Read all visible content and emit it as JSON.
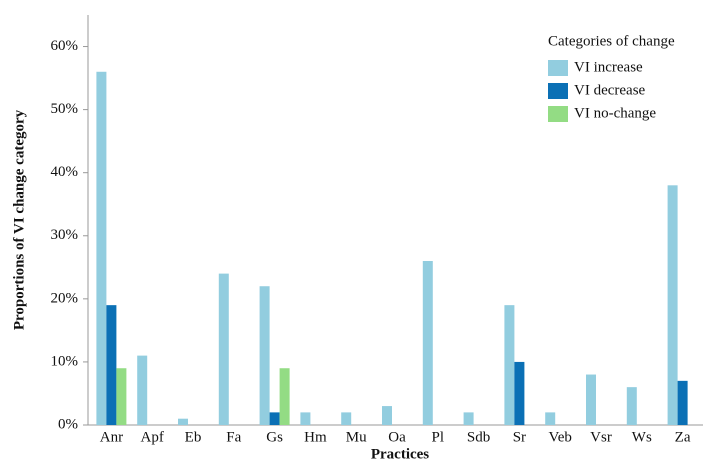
{
  "chart_data": {
    "type": "bar",
    "x_label": "Practices",
    "y_label": "Proportions of VI change category",
    "legend_title": "Categories of change",
    "legend": "top-right",
    "categories": [
      "Anr",
      "Apf",
      "Eb",
      "Fa",
      "Gs",
      "Hm",
      "Mu",
      "Oa",
      "Pl",
      "Sdb",
      "Sr",
      "Veb",
      "Vsr",
      "Ws",
      "Za"
    ],
    "series": [
      {
        "name": "VI increase",
        "color": "#92cddf",
        "values": [
          56,
          11,
          1,
          24,
          22,
          2,
          2,
          3,
          26,
          2,
          19,
          2,
          8,
          6,
          38
        ]
      },
      {
        "name": "VI decrease",
        "color": "#0b70b5",
        "values": [
          19,
          0,
          0,
          0,
          2,
          0,
          0,
          0,
          0,
          0,
          10,
          0,
          0,
          0,
          7
        ]
      },
      {
        "name": "VI no-change",
        "color": "#93dc84",
        "values": [
          9,
          0,
          0,
          0,
          9,
          0,
          0,
          0,
          0,
          0,
          0,
          0,
          0,
          0,
          0
        ]
      }
    ],
    "ylim": [
      0,
      65
    ],
    "yticks": [
      {
        "value": 0,
        "label": "0%"
      },
      {
        "value": 10,
        "label": "10%"
      },
      {
        "value": 20,
        "label": "20%"
      },
      {
        "value": 30,
        "label": "30%"
      },
      {
        "value": 40,
        "label": "40%"
      },
      {
        "value": 50,
        "label": "50%"
      },
      {
        "value": 60,
        "label": "60%"
      }
    ]
  }
}
